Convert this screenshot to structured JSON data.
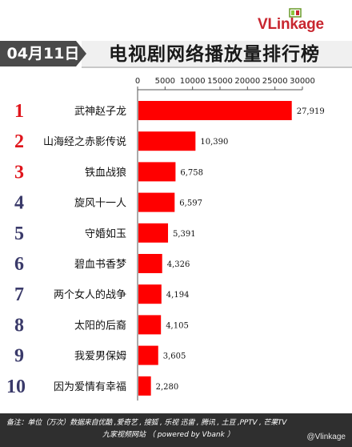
{
  "brand": {
    "name": "VLinkage"
  },
  "date_label": "04月11日",
  "title": "电视剧网络播放量排行榜",
  "footer": {
    "line1": "备注：单位（万次）数据来自优酷 ,爱奇艺 , 搜狐 , 乐视  迅雷 , 腾讯 , 土豆 ,PPTV , 芒果TV",
    "line2": "九家视频网站    （ powered by Vbank ）",
    "handle": "@Vlinkage"
  },
  "chart_data": {
    "type": "bar",
    "orientation": "horizontal",
    "title": "电视剧网络播放量排行榜",
    "xlim": [
      0,
      30000
    ],
    "xticks": [
      "0",
      "5000",
      "10000",
      "15000",
      "20000",
      "25000",
      "30000"
    ],
    "ranks": [
      "1",
      "2",
      "3",
      "4",
      "5",
      "6",
      "7",
      "8",
      "9",
      "10"
    ],
    "rank_colors": [
      "#e0151c",
      "#e0151c",
      "#e0151c",
      "#3a3a6a",
      "#3a3a6a",
      "#3a3a6a",
      "#3a3a6a",
      "#3a3a6a",
      "#3a3a6a",
      "#3a3a6a"
    ],
    "categories": [
      "武神赵子龙",
      "山海经之赤影传说",
      "铁血战狼",
      "旋风十一人",
      "守婚如玉",
      "碧血书香梦",
      "两个女人的战争",
      "太阳的后裔",
      "我爱男保姆",
      "因为爱情有幸福"
    ],
    "values": [
      27919,
      10390,
      6758,
      6597,
      5391,
      4326,
      4194,
      4105,
      3605,
      2280
    ],
    "value_labels": [
      "27,919",
      "10,390",
      "6,758",
      "6,597",
      "5,391",
      "4,326",
      "4,194",
      "4,105",
      "3,605",
      "2,280"
    ],
    "bar_color": "#ff0000",
    "grid": false
  }
}
